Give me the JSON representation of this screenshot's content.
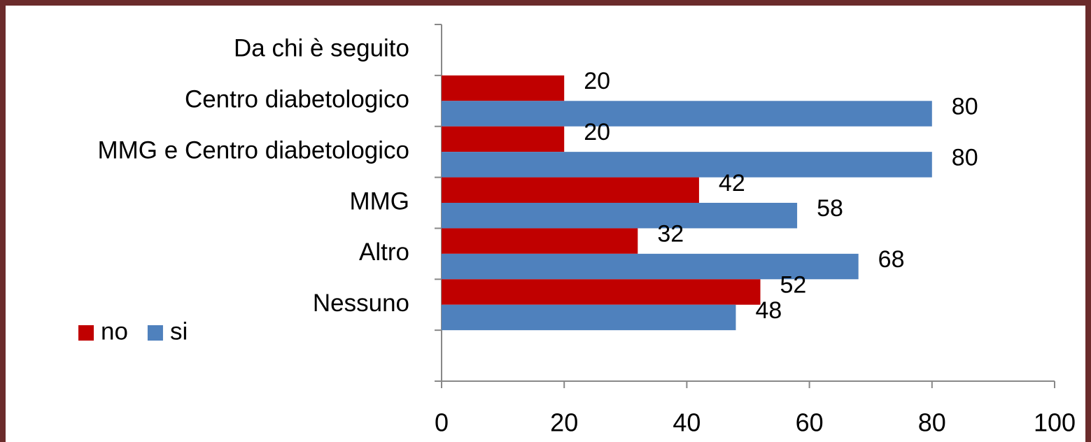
{
  "chart_data": {
    "type": "bar",
    "orientation": "horizontal",
    "categories": [
      "Da chi è seguito",
      "Centro diabetologico",
      "MMG e Centro diabetologico",
      "MMG",
      "Altro",
      "Nessuno",
      null
    ],
    "series": [
      {
        "name": "no",
        "color": "#c00000",
        "values": [
          null,
          20,
          20,
          42,
          32,
          52,
          null
        ]
      },
      {
        "name": "si",
        "color": "#4f81bd",
        "values": [
          null,
          80,
          80,
          58,
          68,
          48,
          null
        ]
      }
    ],
    "xlim": [
      0,
      100
    ],
    "xticks": [
      0,
      20,
      40,
      60,
      80,
      100
    ],
    "grid": false,
    "legend": "left"
  }
}
